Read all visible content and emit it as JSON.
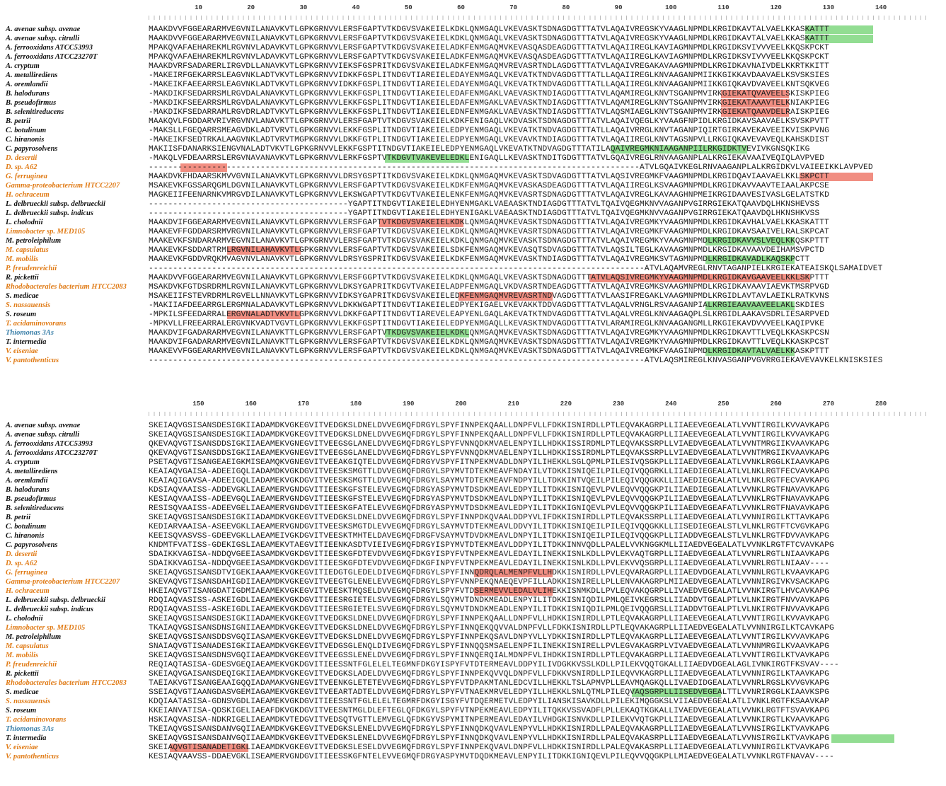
{
  "species": [
    {
      "name": "A. avenae subsp. avenae",
      "color": "black"
    },
    {
      "name": "A. avenae subsp. citrulli",
      "color": "black"
    },
    {
      "name": "A. ferrooxidans ATCC53993",
      "color": "black"
    },
    {
      "name": "A. ferrooxidans ATCC23270T",
      "color": "black"
    },
    {
      "name": "A. cryptum",
      "color": "black"
    },
    {
      "name": "A. metallirediens",
      "color": "black"
    },
    {
      "name": "A. oremlandii",
      "color": "black"
    },
    {
      "name": "B. halodurans",
      "color": "black"
    },
    {
      "name": "B. pseudofirmus",
      "color": "black"
    },
    {
      "name": "B. selenitireducens",
      "color": "black"
    },
    {
      "name": "B. petrii",
      "color": "black"
    },
    {
      "name": "C. botulinum",
      "color": "black"
    },
    {
      "name": "C. hiranonis",
      "color": "black"
    },
    {
      "name": "C. papyrosolvens",
      "color": "black"
    },
    {
      "name": "D. desertii",
      "color": "orange"
    },
    {
      "name": "D. sp. A62",
      "color": "orange"
    },
    {
      "name": "G. ferruginea",
      "color": "orange"
    },
    {
      "name": "Gamma-proteobacterium HTCC2207",
      "color": "orange"
    },
    {
      "name": "H. ochraceum",
      "color": "orange"
    },
    {
      "name": "L. delbrueckii subsp. delbrueckii",
      "color": "black"
    },
    {
      "name": "L. delbrueckii subsp. indicus",
      "color": "black"
    },
    {
      "name": "L. cholodnii",
      "color": "black"
    },
    {
      "name": "Limnobacter sp. MED105",
      "color": "orange"
    },
    {
      "name": "M. petroleiphilum",
      "color": "black"
    },
    {
      "name": "M. capsulatus",
      "color": "orange"
    },
    {
      "name": "M. mobilis",
      "color": "orange"
    },
    {
      "name": "P. freudenreichii",
      "color": "orange"
    },
    {
      "name": "R. pickettii",
      "color": "black"
    },
    {
      "name": "Rhodobacterales bacterium HTCC2083",
      "color": "orange"
    },
    {
      "name": "S. medicae",
      "color": "black"
    },
    {
      "name": "S. nassauensis",
      "color": "orange"
    },
    {
      "name": "S. roseum",
      "color": "black"
    },
    {
      "name": "T. acidaminovorans",
      "color": "orange"
    },
    {
      "name": "Thiomonas 3As",
      "color": "teal"
    },
    {
      "name": "T. intermedia",
      "color": "black"
    },
    {
      "name": "V. eiseniae",
      "color": "orange"
    },
    {
      "name": "V. pantothenticus",
      "color": "orange"
    }
  ],
  "block1": {
    "ruler": [
      "10",
      "20",
      "30",
      "40",
      "50",
      "60",
      "70",
      "80",
      "90",
      "100",
      "110",
      "120",
      "130",
      "140"
    ],
    "seqs": [
      "MAAKDVVFGGEARARMVEGVNILANAVKVTLGPKGRNVVLERSFGAPTVTKDGVSVAKEIELKDKLQNMGAQLVKEVASKTSDNAGDGTTTATVLAQAIVREGSKYVAAGLNPMDLKRGIDKAVTALVAELKKASKATTT",
      "MAAKDVVFGGEARARMVEGVNILANAVKVTLGPKGRNVVLERSFGAPTVTKDGVSVAKEIELKDKLQNMGAQLVKEVASKTSDNAGDGTTTATVLAQAIVREGSKYVAAGLNPMDLKRGIDKAVTALVAELKKASKATTT",
      "MPAKQVAFAEHAREKMLRGVNVLADAVKVTLGPKGRNVVLERSFGAPTVTKDGVSVAKEIELADKFENMGAQMVKEVASQASDEAGDGTTTATVLAQAIIREGLKAVIAGMNPMDLKRGIDKSVIVVVEELKKQSKPCKT",
      "MPAKQVAFAEHAREKMLRGVNVLADAVKVTLGPKGRNVVLERSFGAPTVTKDGVSVAKEIELADKFENMGAQMVKEVASQASDEAGDGTTTATVLAQAIIREGLKAVIAGMNPMDLKRGIDKSVIVVVEELKKQSKPCKT",
      "MAAKDVRFSADARERLIRGVDLLANAVKVTLGPKGRNVVIEKSFGSPRITKDGVSVAKEIELADKFENMGAQMVREVASRTNDLAGDGTTTATVLAQAIVREGAKAVAAGMNPMDLKRGIDKAVNAIVDELKKRTKKITT",
      "-MAKEIRFGEKARRSLEAGVNKLADTVKVTLGPKGRNVVIDKKFGSPLITNDGVTIAREIELEDAYENMGAQLVKEVATKTNDVAGDGTTTATLLAQAIIREGLKNVAAGANPMIIKKGIKKAVDAAVAELKSVSKSIES",
      "-MAKEIKFAEEARRSLEAGVNKLADTVKVTLGPKGRNVVIDKKFGSPLITNDGVTIAREIELEDAYENMGAQLVKEVATKTNDVAGDGTTTATLLAQAIIREGLKNVAAGANPMIIKKGIQKAVDVAVEELKNTSQKVEG",
      "-MAKDIKFSEDARRSMLRGVDALANAVKVTLGPKGRNVVLEKKFGSPLITNDGVTIAKEIELEDAFENMGAKLVAEVASKTNDIAGDGTTTATVLAQAMIREGLKNVTSGANPMVIRKGIEKATQVAVEELSKISKPIEG",
      "-MAKDIKFSEEARRSMLRGVDALANAVKVTLGPKGRNVVLEKKFGSPLITNDGVTIAKEIELEDAFENMGAKLVAEVASKTNDIAGDGTTTATVLAQAMIREGLKNVTSGANPMVIRKGIEKATAAAVTELKNIAKPIEG",
      "-MAKDIKFSEDARRAMLRGVDRLADTVKVTLGPKGRNVVLEKKFGSPLITNDGVTIAKEIELEDNFENMGAKLVAEVASKTNDIAGDGTTTATVLAQSMIAEGLKNVTSGANPMVIRKGIEKATQAAVDELRAISKPIEG",
      "MAAKQVLFGDDARVRIVRGVNVLANAVKTTLGPKGRNVVLERSFGAPTVTKDGVSVAKEIELKDKFENIGAQLVKDVASKTSDNAGDGTTTATVLAQAIVQEGLKYVAAGFNPIDLKRGIDKAVSAAVAELKSVSKPVTT",
      "-MAKSLLFGEQARRSMEAGVDKLADTVRVTLGPKGRNVVLEKKFGSPLITNDGVTIAKEIELEDPYENMGAQLVKEVATKTNDVAGDGTTTATLLAQAIVRRGLKNVTAGANPIQIRTGIRKAVEKAVEEIKVISKPVNG",
      "-MAKEIKFSEDTRKALAAGVNKLADTVRVTMGPKGRNVVLDKKFGTPLITNDGVTIAKEIELEDPYENMGAQLVKEVAVKTNDIAGDGTTTATVLAQAIIREGLKNVTAGSNPVLLRKGIQKAVEVAVEQLKAHSKDIST",
      "MAKIISFDANARKSIENGVNALADTVKVTLGPKGRNVVLEKKFGSPTITNDGVTIAKEIELEDPYENMGAQLVKEVATKTNDVAGDGTTTATILAQAIVREGMKNIAAGANPIILRKGIDKTVEVIVKGNSQKIKG",
      "-MAKQLVFDEAARRSLERGVNAVANAVKVTLGPKGRNVVLERKFGSPTVTKDGVTVAKEVELEDKLENIGAQLLKEVASKTNDITGDGTTTATVLGQAIVREGLRNVAAGANPLALKRGIEKAVAAIVEQIQLAVPVED",
      "-----------------------------------------------------------------------------------------------------ATVLGQAIVKEGLRNVAAGANPLALKRGIDKVLVAIEEIKKLAVPVED",
      "MAAKDVKFHDAARSKMVVGVNILANAVKVTLGPKGRNVVLDRSYGSPTITKDGVSVAKEIELKDKLQNMGAQMVKEVASKTSDVAGDGTTTATVLAQSIVREGMKFVAAGMNPMDLKRGIDQAVIAAVAELKKLSKPCTT",
      "MSAKEVKFGSSARQGMLDGVNILANAVKVTLGPKGRNVVLERSFGAPTVTKDGVSVAKEIELKDKFENMGAQMVKEVASKASDEAGDGTTTATVLAQAIIREGLKSVAAGMNPMDLKRGIDKAVVAAVTEIAALAKPCSE",
      "MAGKEIIFEENARNKVMRGVDILANAVKVTLGPKGRNVVLEKSWGAPTVTKDGVTVAKEIELENKFENMGAQMVKEVASRTSDNAGDGTTTATVLAQAIVREGLKAVAAGHNPMEIKRGIDAAVESIVASLGELATSTKD",
      "-----------------------------------------YGAPTITNDGVTIAKEIELEDHYENMGAKLVAEAASKTNDIAGDGTTTATVLTQAIVQEGMKNVVAGANPVGIRRGIEKATQAAVDQLHKNSHEVSS",
      "-----------------------------------------YGAPTITNDGVTIAKEIELEDHYENIGAKLVAEAASKTNDIAGDGTTTATVLTQAIVQEGMKNVVAGANPVGIRRGIEKATQAAVDQLHKNSHKVSS",
      "MAAKDVIFGGEARARMVEGVNILANAVKVTLGPKGRNVVLERSFGAPTVTKDGVSVAKEIELKDKLQNMGAQMVKEVASKTSDNAGDGTTTATVLAQAIVREGMKYVAAGMNPMDLKRGIDKAVHALVAELKKASKATTT",
      "MAAKEVFFGDDARSRMVRGVNILANAVKVTLGPKGRNVVLERSFGAPTVTKDGVSVAKEIELKDKLQNMGAQMVKEVASRTSDNAGDGTTTATVLAQAIVREGMKFVAAGMNPMDLKRGIDKAVSAAIVELRALSKPCAT",
      "MAAKEVKFSNDARARMVEGVNILANAVKVTLGPKGRNVVLERSFGAPTVTKDGVSVAKEIELKDKLQNMGAQMVKEVASKTSDNAGDGTTTATVLAQAIVREGMKYVAAGMNPMDLKRGIDKAVVSLVEQLKKQSKPTTT",
      "MAAKEVKFSDDARTRMLRGVNILAHAVKVTLGPKGRNVVLERSFGAPTVTKDGVSVAKEIELSDKFENMGAQMVKEVASQTSDVAGDGTTTATVLAQSILTEGLKAVAAGMNPMDLKRGIDKAVAAVDEIHAMSVPCTD",
      "MAAKEVKFGDDVRQKMVAGVNVLANAVKVTLGPKGRNVVLDRSYGSPRITKDGVSVAKEIELKDKFENMGAQMVKEVASKTNDIAGDGTTTATVLAQAIVREGMKSVTAGMNPMDLKRGIDKAVADLKAQSKPCTT",
      "------------------------------------------------------------------------------------------------------ATVLAQAMVREGLRNVTAGANPIELKRGIEKATEAISKQLSAMAIDVET",
      "MAAKDVVFGGEARARMVEGVNILANAVKVTLGPKGRNVVLERSFGGPTVTKDGVSVAKEIELKDKLQNMGAQLVKEVASKTSDNAGDGTTTATVLAQSIVREGMKYVAAGMNPMDLKRGIDKAVGAAVEELKKLSKPTTT",
      "MSAKDVKFGTDSRDRMLRGVNILANAVKVTLGPKGRNVVLDKSYGAPRITKDGVTVAKEIELADPFENMGAQLVKDVASRTNDEAGDGTTTATVLAQAIVREGMKSVAAGMNPMDLKRGIDKAVAAVIAEVKTMSRPVGD",
      "MSAKEIIFSTEVRDRMLRGVELLNNAVKVTLGPKGRNVVIDKSYGAPRITKDGVSVAKEIELEDKFENMGAQMVREVASRTNDVAGDGTTTATVLAASIFREGAKLVAAGMNPMDLKRGIDLAVTAVLAEIKLRATKVNS",
      "-MAKIIAFDEEARRGLERGMNALADAVKVTLGPKGRNVVLDKKWGAPTITNDGVTIAKEIELEDPYEKIGAELVKEVAKKTDDVAGDGTTTATVLAQALVRNGLRSVAAGANPIALKRGIEAAVAAVEELAKLSKDIES",
      "-MPKILSFEEDARRALERGVNALADTVKVTLGPKGRNVVLDKKFGAPTITNDGVTIAREVELEAPYENLGAQLAKEVATKTNDVAGDGTTTATVLAQALVREGLKNVAAGAQPLSLKRGIDLAAKAVSDRLIESARPVED",
      "-MPKVLLFREEARRALERGVNKVADTVGVTLGPKGRNVVLEKKFGSPTITNDGVTIAKEIELEDPYENMGAQLLKEVASKTNDVAGDGTTTATVLARAMIREGLKNVAAGANGMLLRKGIEKAVDVVVEELKAQIPVKE",
      "MAAKDVIFGADARARMVEGVNILANAVKTTLGPKGRNVVLERSFGAPTVTKDGVSVAKEIELKDKLQNMGAQMVKEVASKTSDNAGDGTTTATVLAQAIVREGMKYVAAGMNPMDLKRGIDKAVTTLVEQLKKASKPCSN",
      "MAAKDVIFGADARARMVEGVNILANAVKTTLGPKGRNVVLERSFGAPTVTKDGVSVAKEIELKDKLQNMGAQMVKEVASKTSDNAGDGTTTATVLAQAIVREGMKYVAAGMNPMDLKRGIDKAVTTLVEQLKKASKPCST",
      "MAAKEVVFGGEARARMVEGVNILANAVKVTLGPKGRNVVLERSFGAPTVTKDGVSVAKEIELKDKLQNMGAQMVKEVASKTSDNAGDGTTTATVLAQAIVREGMKFVAAGINPMDLKRGIDKAVTALVAELKKASKPTTT",
      "------------------------------------------------------------------------------------------------------ATVLAQSMIREGLKNVASGANPVGVRRGIEKAVEVAVKELKNISKSIES"
    ],
    "highlights": [
      {
        "row": 0,
        "start": 125,
        "len": 13,
        "color": "green"
      },
      {
        "row": 1,
        "start": 125,
        "len": 13,
        "color": "green"
      },
      {
        "row": 7,
        "start": 109,
        "len": 13,
        "color": "red"
      },
      {
        "row": 8,
        "start": 109,
        "len": 13,
        "color": "red"
      },
      {
        "row": 9,
        "start": 109,
        "len": 13,
        "color": "red"
      },
      {
        "row": 13,
        "start": 88,
        "len": 26,
        "color": "green"
      },
      {
        "row": 14,
        "start": 45,
        "len": 16,
        "color": "green"
      },
      {
        "row": 15,
        "start": 6,
        "len": 9,
        "color": "red"
      },
      {
        "row": 16,
        "start": 124,
        "len": 14,
        "color": "red"
      },
      {
        "row": 21,
        "start": 44,
        "len": 16,
        "color": "red"
      },
      {
        "row": 23,
        "start": 106,
        "len": 17,
        "color": "green"
      },
      {
        "row": 24,
        "start": 15,
        "len": 14,
        "color": "red"
      },
      {
        "row": 25,
        "start": 106,
        "len": 17,
        "color": "green"
      },
      {
        "row": 27,
        "start": 84,
        "len": 25,
        "color": "red"
      },
      {
        "row": 27,
        "start": 109,
        "len": 17,
        "color": "red"
      },
      {
        "row": 29,
        "start": 59,
        "len": 18,
        "color": "red"
      },
      {
        "row": 30,
        "start": 106,
        "len": 17,
        "color": "green"
      },
      {
        "row": 31,
        "start": 15,
        "len": 14,
        "color": "red"
      },
      {
        "row": 33,
        "start": 45,
        "len": 16,
        "color": "green"
      },
      {
        "row": 35,
        "start": 106,
        "len": 17,
        "color": "green"
      },
      {
        "row": 37,
        "start": 6,
        "len": 9,
        "color": "red"
      },
      {
        "row": 38,
        "start": 125,
        "len": 9,
        "color": "red"
      }
    ]
  },
  "block2": {
    "ruler": [
      "150",
      "160",
      "170",
      "180",
      "190",
      "200",
      "210",
      "220",
      "230",
      "240",
      "250",
      "260",
      "270",
      "280"
    ],
    "seqs": [
      "SKEIAQVGSISANSDESIGKIIADAMDKVGKEGVITVEDGKSLDNELDVVEGMQFDRGYLSPYFINNPEKQAALLDNPFVLLFDKKISNIRDLLPTLEQVAKAGRPLLIIAEEVEGEALATLVVNTIRGILKVVAVKAPG",
      "SKEIAQVGSISANSDESIGKIIADAMDKVGKEGVITVEDGKSLDNELDVVEGMQFDRGYLSPYFINNPEKQAALLDNPFVLLFDKKISNIRDLLPTLEQVAKAGRPLLIIAEEVEGEALATLVVNTIRGILKVVAVKAPG",
      "QKEVAQVGTISANSDDSIGKIIAEAMEKVGNEGVITVEEGSGLANELDVVEGMQFDRGYLSPYFVNNQDKMVAELENPYILLHDKKISSIRDMLPTLEQVAKSSRPLLVIAEDVEGEALATLVVNTMRGIIKVAAVKAPG",
      "QKEVAQVGTISANSDDSIGKIIAEAMEKVGNEGVITVEEGSGLANELDVVEGMQFDRGYLSPYFVNNQDKMVAELENPYILLHDKKISSIRDMLPTLEQVAKSSRPLLVIAEDVEGEALATLVVNTMRGIIKVAAVKAPG",
      "PSETAQVGTISANGEAEIGKMISEAMQKVGNEGVITVEEAKGIQTELDVVEGMQFDRGYVSPYFITNPEKMVADLDNPYILIHEKKLSGLQPMLPILESIVQSGKPLLIIAEDVEGEALATLVVNKLRGGLKIAAVKAPG",
      "KEAIAQVGAISA-ADEEIGQLIADAMDKVGKDGVITVEESKSMGTTLDVVEGMQFDRGYLSPYMVTDTEKMEAVFNDAYILVTDKKISNIQEILPILEQIVQQGRKLLIIAEDIEGEALATLVLNKLRGTFECVAVKAPG",
      "KEAIAQIGAVSA-ADEEIGQLIADAMEKVGKDGVITVEESKSMGTTLDVVEGMQFDRGYLSAYMVTDTEKMEAVFNDPYILLTDKKINTVQEILPILEQIVQQGKKLLIIAEDIEGEALATLVLNKLRGTFECVAVKAPG",
      "KDSIAQVAAISS-ADDEVGKLIAEAMERVGNDGVITIEESKGFSTELEVVEGMQFDRGYASPYMVTDSDKMEAVLEDPYILITDKKISNIQEVLPVLEQVVQQGKPILIIAEDIEGEALATLVVNKLRGTFNAVAVKAPG",
      "KESIAQVAAISS-ADEEVGQLIAEAMERVGNDGVITIEESKGFSTELEVVEGMQFDRGYASPYMVTDSDKMEAVLDNPYILITDKKISNIQEVLPVLEQVVQQGKPILIIAEDVEGEALATLVVNKLRGTFNAVAVKAPG",
      "RESISQVAAISS-ADEEVGELIAEAMERVGNDGVITIEESKGFATELEVVEGMQFDRGYASPYMVTDSDKMEAVLEDPYILITDKKIGNIQEVLPVLEQVVQQGKPILIIAEDVEGEAFATLVVNKLRGTFNAVAVKAPG",
      "SKEIAQVGSISANSDESIGKIIADAMDKVGKEGVITVEDGKSLDNELDVVEGMQFDRGYLSPYFINNPDKQVAALDDPYVLIFDKKISNIRDLLPTLEQVAKSSRPLLIIAEDVEGEALATLVVNNIRGILKTTAVKAPG",
      "KEDIARVAAISA-ASEEVGKLIAEAMERVGNDGVITVEESKSMGTDLEVVEGMQFDRGYLSAYMVTDTEKMEAVLDDVYILITDKKISNIQEILPILEQIVQQGKKLLIISEDIEGEALSTLVLNKLRGTFTCVGVKAPG",
      "KEEISQVASVSS-GDEEVGKLLAEAMEIVGKDGVITVEESKTMHTELDAVEGMQFDRGFVSAYMVTDVDKMEAVLDNPYILITDKKISNIQEILPILEQIVQQGKPLLIIADDVEGEALSTLVLNKLRGTFDVVAVKAPG",
      "KNDMTFVATISS-GDEKIGSLIAEAMEKVTAEGVITIEENKASDTVIEIVEGMQFDRGYISPYMVTDTEKMEAVLDDPYILITDKKINNVQDLLPALELVVKNGGKMLLIIAEDVEGEALATLVVNKLRGTFTCVAVKAPG",
      "SDAIKKVAGISA-NDDQVGEEIASAMDKVGKDGVITIEESKGFDTEVDVVEGMQFDKGYISPYFVTNPEKMEAVLEDAYILINEKKISNLKDLLPVLEKVAQTGRPLLIIAEDVEGEALATLVVNRLRGTLNIAAVKAPG",
      "SDAIKKVAGISA-NDDQVGEEIASAMDKVGKDGVITIEESKGFDTEVDVVEGMQFDKGFINPYFVTNPEKMEAVLEDAYILINEKKISNLKDLLPVLEKVVQSGRPLLIIAEDVEGEALATLVVNRLRGTLNIAAV----",
      "SKEIAQVGSISANSDTVIGEKIAAAMEKVGKEGVITIEDGTGLEDELDIVEGMQFDRGYLSPYFINNQDRQLALMENPFVLLHDKKISNIRDLLPVLEQVARAGRPLLIIAEDVDGEALATLVVNNLRGTLKVAAVKAPG",
      "SKEVAQVGTISANSDAHIGDIIAEAMDKVGKEGVITVEEGTGLENELEVVEGMQFDRGYLSPYFVNNPEKQNAEQEVPFILLADKKISNIRELLPLLENVAKAGRPLMIIAEDVEGEALATLVVNNIRGIVKVSACKAPG",
      "HKEIAQVGTISANGDATIGDMIAEAMEKVGKEGVITVEESKTMQSELDVVEGMQFDRGYLSPYFVTDSERMEVVLEDALVLIHEKKISNMKDLLPVLEQVAKQGRPLLIVAEDVEGEALATLVVNKIRGTLHVCAVKAPG",
      "RDQIAQVASISS-ASKEIGDLIAEAMEKVGKDGVITIEESRGIETELSVVEGMQFDRGYLSQYMVTDNDKMEADLENPYILITDKKISNIQDILPMLQEIVKEGRSLLIIADDVTGEALPTLVLNKIRGTFNVVAVKAPG",
      "RDQIAQVASISS-ASKEIGDLIAEAMEKVGKDGVITIEESRGIETELSVVEGMQFDRGYLSQYMVTDNDKMEADLENPYILITDKKISNIQDILPMLQEIVQQGRSLLIIADDVTGEALPTLVLNKIRGTFNVVAVKAPG",
      "SKEIAQVGSISANSDESIGKIIADAMEKVGKEGVITVEDGKSLDNELDVVEGMQFDRGYLSPYFINNPEKQAALLDNPFVLLHDKKISNIRDLLPTLEQVAKAGRPLLIIAEEVEGEALATLVVNTIRGILKVVAVKAPG",
      "TKAIAQVGSISANSDNSIGNIIAEAMDKVGKEGVITVEDGKSLDNELDVVEGMQFDRGYLSPYFINNQEKQQVVALDNPFVLLFDKKISNIRDLLPTLEQVAKAGRPLLIIAEDVEGEALATLVVNNIRGILKTCAVKAPG",
      "SKEIAQVGSISANSDDSVGQIIASAMEKVGKEGVITVEDGKSLDNELDVVEGMQFDRGYLSPYFINNPEKQSAVLDNPYVLLYDKKISNIRDLLPTLEQVAKAGRPLLIIAEEVEGEALATLVVNTIRGILKVVAVKAPG",
      "SNAIAQVGTISANADESIGKIIAEAMDKVGKEGVITVEDGSGLENQLDIVEGMQFDRGYLSPYFINNQQSMSAELENPFILINEKKISNIRELLPVLEGVAKAGRPLVIVAEDVEGEALATLVVNNMRGILKVAAVKAPG",
      "SKEIAQVGSISANSDNSVGQIIAEAMDKVGKEGVITVEEGSSLENELDVVEGMQFDRGYLSPYFINNQERQIALMDNPFVLIHDKKISNIRDLLPTLEQVAKAGRPLLIIAEDVEGEALATLVVNTIRGILKTVAVKAPG",
      "REQIAQTASISA-GDESVGEQIAEAMEKVGKDGVITIEESSNTFGLELELTEGMNFDKGYISPYFVTDTERMEAVLDDPYILIVDGKKVSSLKDLLPILEKVQQTGKALLIIAEDVDGEALAGLIVNKIRGTFKSVAV----",
      "SKEIAQVGAISANSDEQIGKIIAEAMDKVGKEGVITVEDGKSLADELDVVEGMQFDRGYLSPYFINNPEKQVVQLDNPFVLLFDKKVSNIRDLLPILEQVVKAGRPLLIIAEDVEGEALATLVVNNIRGILKTAAVKAPG",
      "TAEIAKVGTISANGEAAIGQQIADAMAKVGNEGVITVEENKGLETETEVVEGMQFDRGYLSPYFVTDPAKMTANLEDCVILLHEKKLTSLAPMVPLLEAVMQAGKQLLIVAEDIDGEALATLVVNRLRGSLKVVGVKAPG",
      "SSEIAQVGTIAANGDASVGEMIAGAMEKVGKEGVITVEEARTADTELDVVEGMQFDRGYLSPYFVTNAEKMRVELEDPYILLHEKKLSNLQTMLPILEQVAQSGRPLLIISEDVEGEALTTLVVNRIRGGLKIAAVKSPG",
      "KDQIAATASISA-GDNSVGDLIAEAMEKVGKDGVITIEESSNTFGLELELTEGMRFDKGYISGYFVTDQERMETVLEDPYILIANSKISAVKDLLPILEKIMQGGKSLVIIAEDVEGEALATLIVNKLRGTFKSAAVKAP",
      "KKEIANVATISA-QDSKIGELIAEAFDKVGKDGVITVEESNTMGLDLEFTEGLQFDKGYLSPYFVTNPEKMEAVLEDPYILITQKKVSSVADFLPLLEKAQTKGKALLIVAEDVEGEALATLVVNKLRGTFTSVAVKAPG",
      "HSKIAQVASISA-NDKRIGELIAEAMDKVTEDGVITVEDSQTVGTTLEMVEGLQFDKGYVSPYMITNPERMEAVLEDAYILVHDGKISNVKDLLPILEKVVQTGKPLLIIAEDVEGEALATLVVNKIRGTLKVAAVKAPG",
      "TKEIAQVGSISANSDANVGQIIAEAMDKVGKEGVITVEDGKSLENELDVVEGMQFDRGYLSPYFINNQDKQVAVLENPYVLLHDKKISNIRDLLPALEQVAKAGRPLLIIAEDVEGEALATLVVNSIRGILKTVAVKAPG",
      "SKEIAQVGSISANSDANVGQIIAEAMDKVGKEGVITVEDGKSLENELDVVEGMQFDRGYLSPYFINNQDKQVAVLENPYVLLHDKKISNIRDLLPALEQVAKASRPLLIIAEDVEGEALATLVVNSIRGILKTVAVKAPG",
      "SKEIAQVGTISANADETIGKLIAEAMDKVGKEGVITVEDGKSLESELDVVEGMQFDRGYLSPYFINNPEKQVAVLDNPFVLLHDKKISNIRDLLPALEQVAKASRPLLIIAEDVEGEALATLVVNNIRGILKTVAVKAPG",
      "KESIAQVAAVSS-DDAEVGKLISEAMERVGNDGVITIEESSKGFNTELEVVEGMQFDRGYASPYMVTDQDKMEAVLENPYILITDKKIGNIQEVLPILEQVVQQGKPLLMIAEDVEGEALATLVVNKLRGTFNAVAV----"
    ],
    "highlights": [
      {
        "row": 16,
        "start": 62,
        "len": 15,
        "color": "red"
      },
      {
        "row": 18,
        "start": 62,
        "len": 15,
        "color": "red"
      },
      {
        "row": 29,
        "start": 92,
        "len": 17,
        "color": "green"
      },
      {
        "row": 34,
        "start": 130,
        "len": 12,
        "color": "green"
      },
      {
        "row": 35,
        "start": 4,
        "len": 15,
        "color": "red"
      }
    ]
  }
}
